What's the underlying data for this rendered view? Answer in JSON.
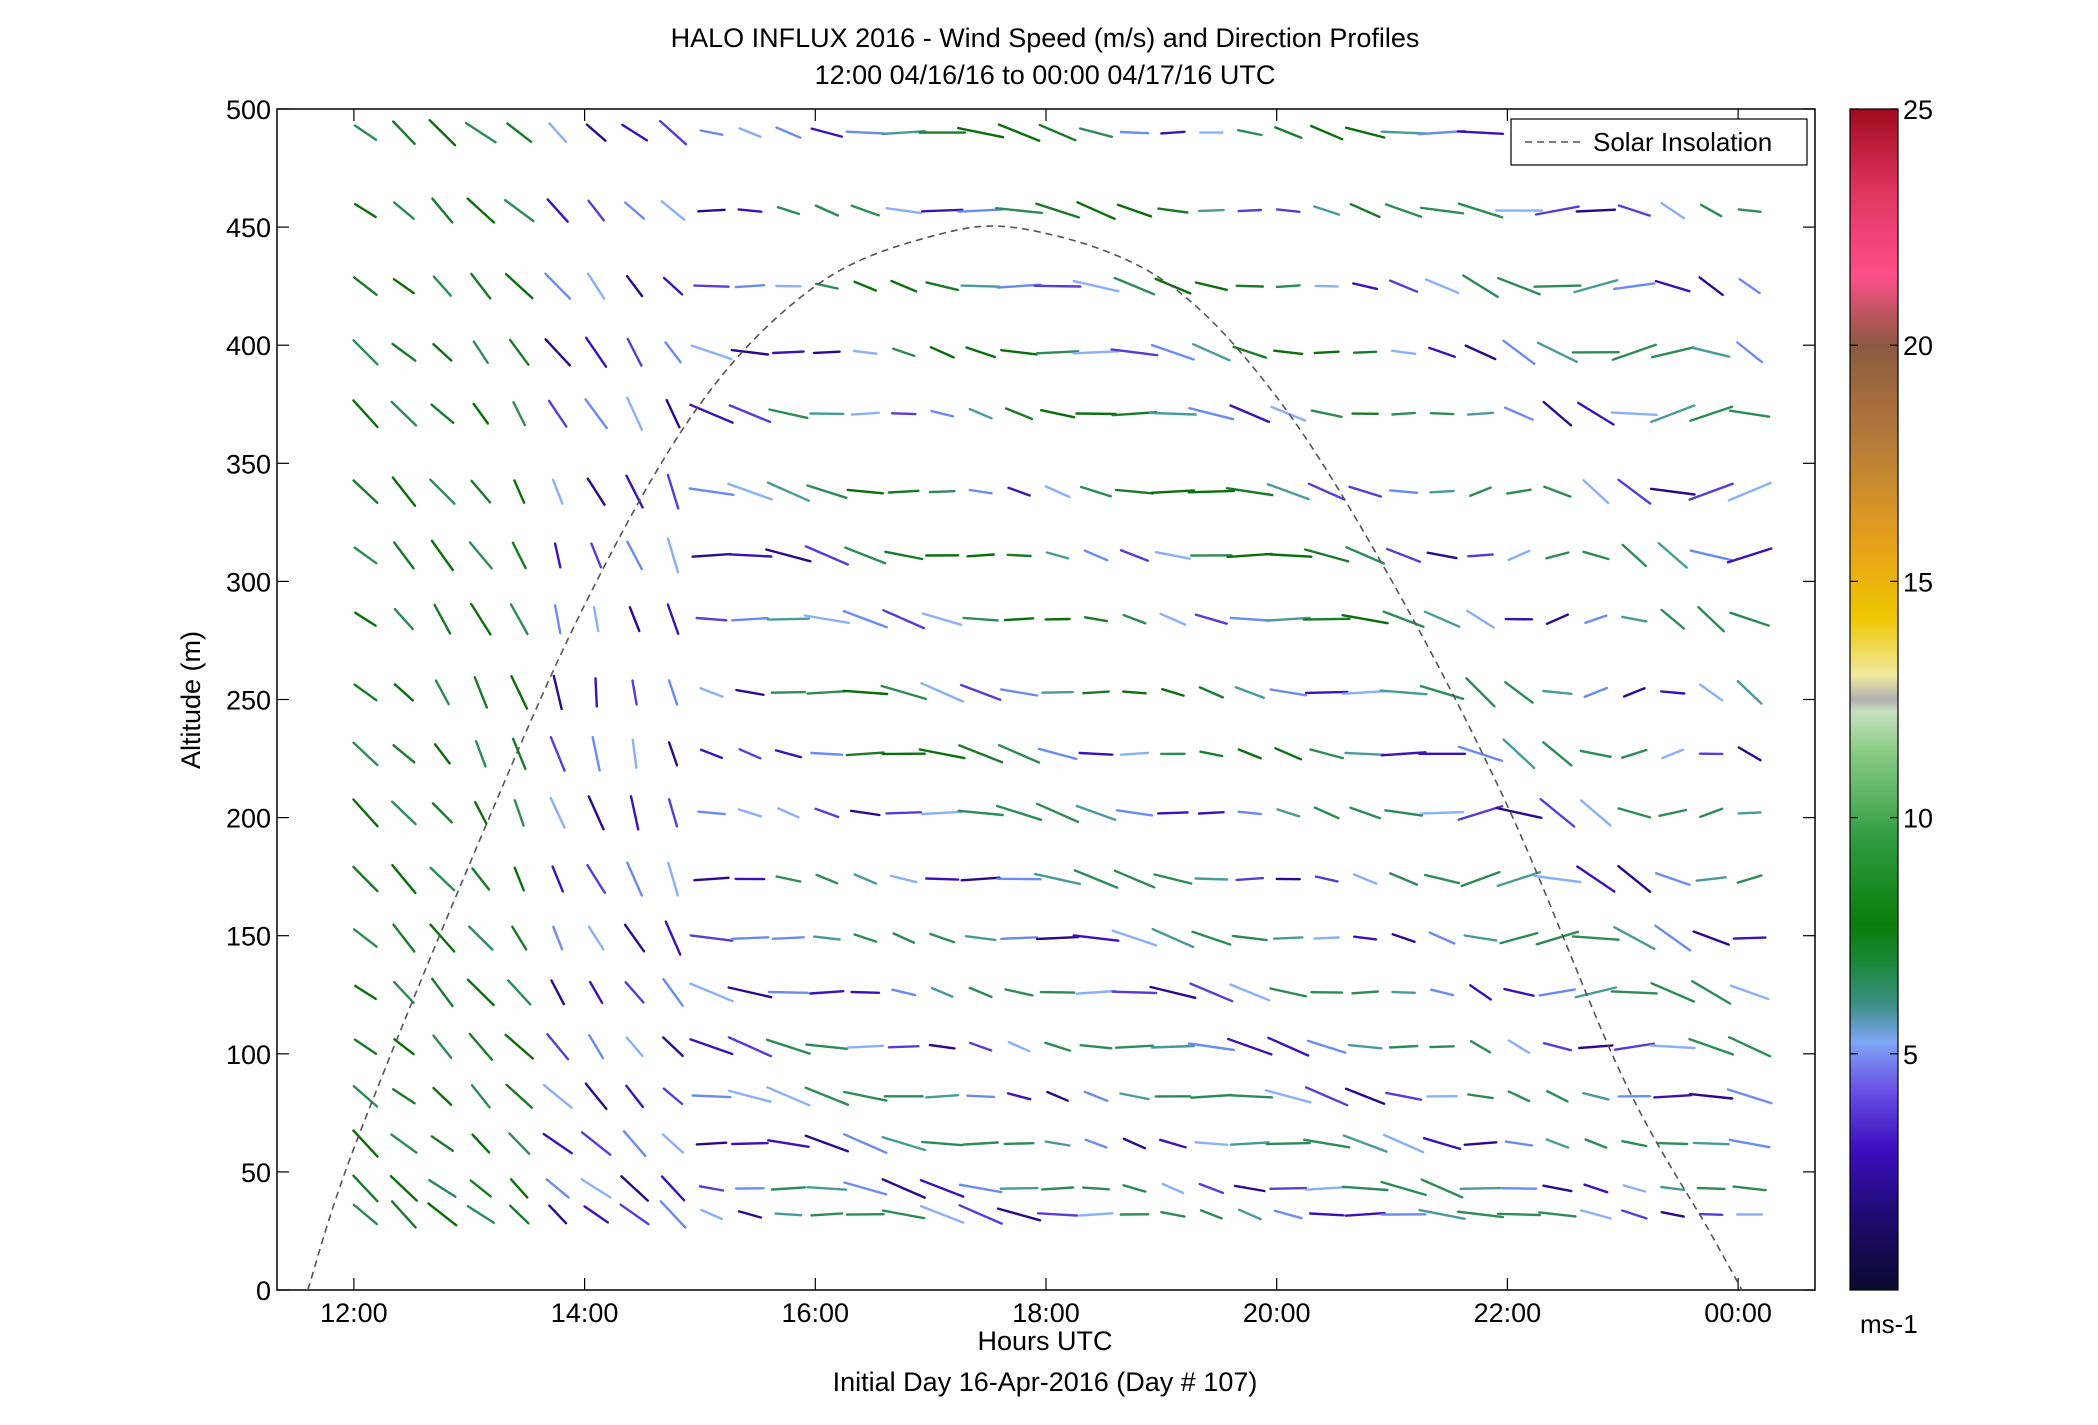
{
  "chart_data": {
    "type": "vector-field",
    "title": "HALO INFLUX 2016 - Wind Speed (m/s) and Direction Profiles",
    "subtitle": "12:00 04/16/16 to 00:00 04/17/16  UTC",
    "xlabel": "Hours UTC",
    "xlabel2": "Initial Day 16-Apr-2016 (Day # 107)",
    "ylabel": "Altitude (m)",
    "xlim": [
      "11:20",
      "00:40"
    ],
    "ylim": [
      0,
      500
    ],
    "x_ticks": [
      "12:00",
      "14:00",
      "16:00",
      "18:00",
      "20:00",
      "22:00",
      "00:00"
    ],
    "y_ticks": [
      0,
      50,
      100,
      150,
      200,
      250,
      300,
      350,
      400,
      450,
      500
    ],
    "grid": false,
    "legend": {
      "position": "top-right",
      "entries": [
        "Solar Insolation"
      ]
    },
    "colorbar": {
      "min": 0,
      "max": 25,
      "ticks": [
        5,
        10,
        15,
        20,
        25
      ],
      "unit": "ms-1"
    },
    "solar_insolation": {
      "style": "dashed",
      "color": "#555555",
      "x": [
        "11:36",
        "12:00",
        "13:00",
        "14:00",
        "15:00",
        "16:00",
        "17:00",
        "17:50",
        "19:00",
        "20:00",
        "21:00",
        "22:00",
        "23:00",
        "23:45",
        "00:02"
      ],
      "y": [
        0,
        60,
        180,
        290,
        375,
        425,
        446,
        449,
        428,
        378,
        300,
        205,
        90,
        25,
        0
      ]
    },
    "altitudes": [
      32,
      43,
      62,
      82,
      103,
      126,
      149,
      174,
      202,
      227,
      253,
      284,
      311,
      338,
      371,
      397,
      425,
      457,
      490
    ],
    "times": [
      "12:06",
      "12:26",
      "12:46",
      "13:06",
      "13:26",
      "13:46",
      "14:06",
      "14:26",
      "14:46",
      "15:06",
      "15:26",
      "15:46",
      "16:06",
      "16:26",
      "16:46",
      "17:06",
      "17:26",
      "17:46",
      "18:06",
      "18:26",
      "18:46",
      "19:06",
      "19:26",
      "19:46",
      "20:06",
      "20:26",
      "20:46",
      "21:06",
      "21:26",
      "21:46",
      "22:06",
      "22:26",
      "22:46",
      "23:06",
      "23:26",
      "23:46",
      "00:06"
    ]
  }
}
